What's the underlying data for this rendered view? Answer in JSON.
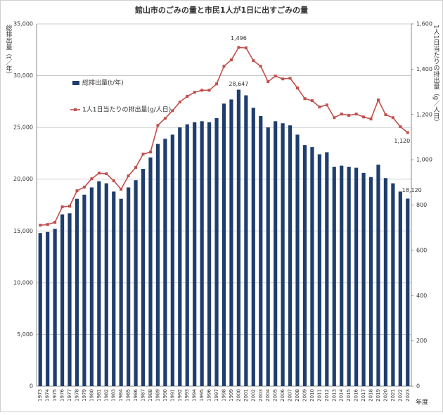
{
  "chart_data": {
    "type": "bar_line",
    "title": "館山市のごみの量と市民1人が1日に出すごみの量",
    "ylabel": "総排出量（t／年）",
    "y2label": "1人1日当たりの排出量（g／人日）",
    "xlabel": "年度",
    "categories": [
      "1973",
      "1974",
      "1975",
      "1976",
      "1977",
      "1978",
      "1979",
      "1980",
      "1981",
      "1982",
      "1983",
      "1984",
      "1985",
      "1986",
      "1987",
      "1988",
      "1989",
      "1990",
      "1991",
      "1992",
      "1993",
      "1994",
      "1995",
      "1996",
      "1997",
      "1998",
      "1999",
      "2000",
      "2001",
      "2002",
      "2003",
      "2004",
      "2005",
      "2006",
      "2007",
      "2008",
      "2009",
      "2010",
      "2011",
      "2012",
      "2013",
      "2014",
      "2015",
      "2016",
      "2017",
      "2018",
      "2019",
      "2020",
      "2021",
      "2022",
      "2023"
    ],
    "series": [
      {
        "name": "総排出量(t/年)",
        "type": "bar",
        "color": "#1f3e6e",
        "values": [
          14800,
          14900,
          15200,
          16600,
          16700,
          18100,
          18500,
          19200,
          19800,
          19600,
          18800,
          18100,
          19200,
          19900,
          21000,
          22100,
          23400,
          23900,
          24300,
          25000,
          25300,
          25500,
          25600,
          25500,
          25900,
          27300,
          27700,
          28647,
          28100,
          26900,
          26100,
          25000,
          25600,
          25400,
          25200,
          24300,
          23300,
          23100,
          22400,
          22600,
          21200,
          21300,
          21200,
          21100,
          20600,
          20200,
          21400,
          20100,
          19600,
          18800,
          18120
        ],
        "value_labels": [
          null,
          null,
          null,
          null,
          null,
          null,
          null,
          null,
          null,
          null,
          null,
          null,
          null,
          null,
          null,
          null,
          null,
          null,
          null,
          null,
          null,
          null,
          null,
          null,
          null,
          null,
          null,
          "28,647",
          null,
          null,
          null,
          null,
          null,
          null,
          null,
          null,
          null,
          null,
          null,
          null,
          null,
          null,
          null,
          null,
          null,
          null,
          null,
          null,
          null,
          null,
          "18,120"
        ]
      },
      {
        "name": "1人1日当たりの排出量(g/人日)",
        "type": "line",
        "axis": "y2",
        "color": "#c0504d",
        "values": [
          711,
          714,
          724,
          792,
          795,
          863,
          879,
          916,
          941,
          938,
          907,
          870,
          929,
          966,
          1025,
          1034,
          1152,
          1183,
          1217,
          1255,
          1280,
          1298,
          1307,
          1307,
          1335,
          1413,
          1441,
          1496,
          1494,
          1438,
          1413,
          1345,
          1370,
          1357,
          1360,
          1317,
          1270,
          1261,
          1233,
          1242,
          1186,
          1202,
          1196,
          1202,
          1189,
          1180,
          1264,
          1199,
          1186,
          1146,
          1120
        ],
        "value_labels": [
          null,
          null,
          null,
          null,
          null,
          null,
          null,
          null,
          null,
          null,
          null,
          null,
          null,
          null,
          null,
          null,
          null,
          null,
          null,
          null,
          null,
          null,
          null,
          null,
          null,
          null,
          null,
          "1,496",
          null,
          null,
          null,
          null,
          null,
          null,
          null,
          null,
          null,
          null,
          null,
          null,
          null,
          null,
          null,
          null,
          null,
          null,
          null,
          null,
          null,
          null,
          "1,120"
        ]
      }
    ],
    "ylim": [
      0,
      35000
    ],
    "yticks": [
      0,
      {
        "value": 5000,
        "label": "5,000"
      },
      {
        "value": 10000,
        "label": "10,000"
      },
      {
        "value": 15000,
        "label": "15,000"
      },
      {
        "value": 20000,
        "label": "20,000"
      },
      {
        "value": 25000,
        "label": "25,000"
      },
      {
        "value": 30000,
        "label": "30,000"
      },
      {
        "value": 35000,
        "label": "35,000"
      }
    ],
    "y2lim": [
      0,
      1600
    ],
    "y2ticks": [
      0,
      200,
      400,
      600,
      800,
      {
        "value": 1000,
        "label": "1,000"
      },
      {
        "value": 1200,
        "label": "1,200"
      },
      {
        "value": 1400,
        "label": "1,400"
      },
      {
        "value": 1600,
        "label": "1,600"
      }
    ],
    "grid": true
  }
}
